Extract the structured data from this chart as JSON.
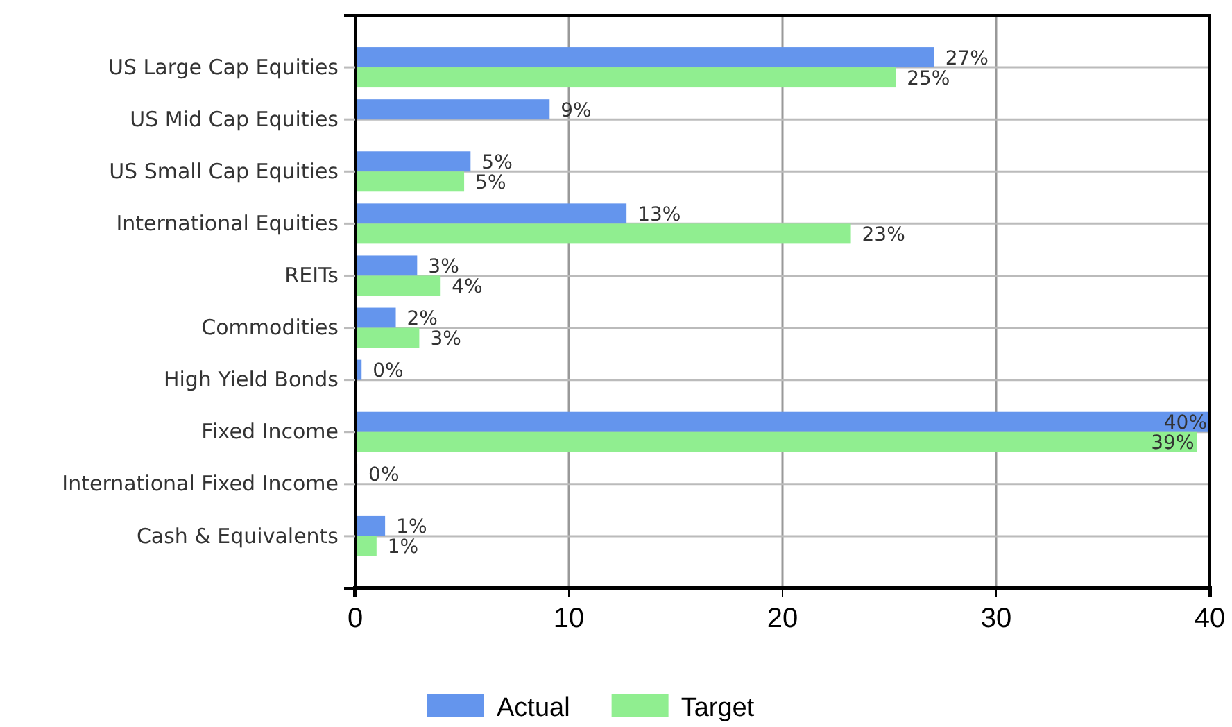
{
  "chart_data": {
    "type": "bar",
    "orientation": "horizontal",
    "categories": [
      "US Large Cap Equities",
      "US Mid Cap Equities",
      "US Small Cap Equities",
      "International Equities",
      "REITs",
      "Commodities",
      "High Yield Bonds",
      "Fixed Income",
      "International Fixed Income",
      "Cash & Equivalents"
    ],
    "series": [
      {
        "name": "Actual",
        "color": "#6495ed",
        "values": [
          27.1,
          9.1,
          5.4,
          12.7,
          2.9,
          1.9,
          0.3,
          40,
          0.1,
          1.4
        ],
        "value_labels": [
          "27%",
          "9%",
          "5%",
          "13%",
          "3%",
          "2%",
          "0%",
          "40%",
          "0%",
          "1%"
        ]
      },
      {
        "name": "Target",
        "color": "#90ee90",
        "values": [
          25.3,
          null,
          5.1,
          23.2,
          4.0,
          3.0,
          null,
          39.4,
          null,
          1.0
        ],
        "value_labels": [
          "25%",
          null,
          "5%",
          "23%",
          "4%",
          "3%",
          null,
          "39%",
          null,
          "1%"
        ]
      }
    ],
    "xlim": [
      0,
      40
    ],
    "xticks": [
      0,
      10,
      20,
      30,
      40
    ],
    "grid": true,
    "legend": "bottom"
  }
}
